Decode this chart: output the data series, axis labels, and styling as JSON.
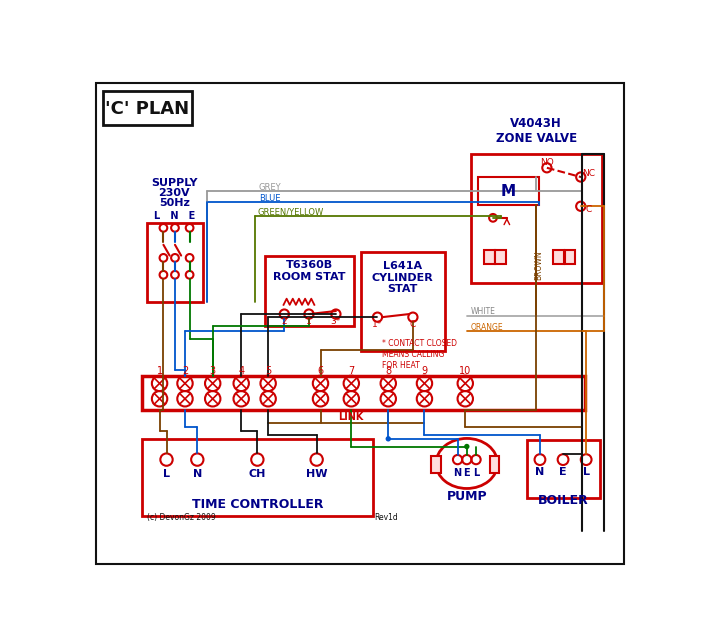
{
  "bg": "#ffffff",
  "red": "#cc0000",
  "blue": "#0055cc",
  "green": "#007700",
  "brown": "#7a4000",
  "grey": "#888888",
  "orange": "#cc6600",
  "black": "#111111",
  "dark_blue": "#000088",
  "gry_wire": "#999999",
  "wht_wire": "#aaaaaa",
  "grn_yel": "#557700",
  "title": "'C' PLAN",
  "zone_valve": "V4043H\nZONE VALVE",
  "room_stat": "T6360B\nROOM STAT",
  "cyl_stat": "L641A\nCYLINDER\nSTAT",
  "time_ctrl": "TIME CONTROLLER",
  "pump_lbl": "PUMP",
  "boiler_lbl": "BOILER",
  "footnote_l": "(c) DevonGz 2009",
  "footnote_r": "Rev1d"
}
